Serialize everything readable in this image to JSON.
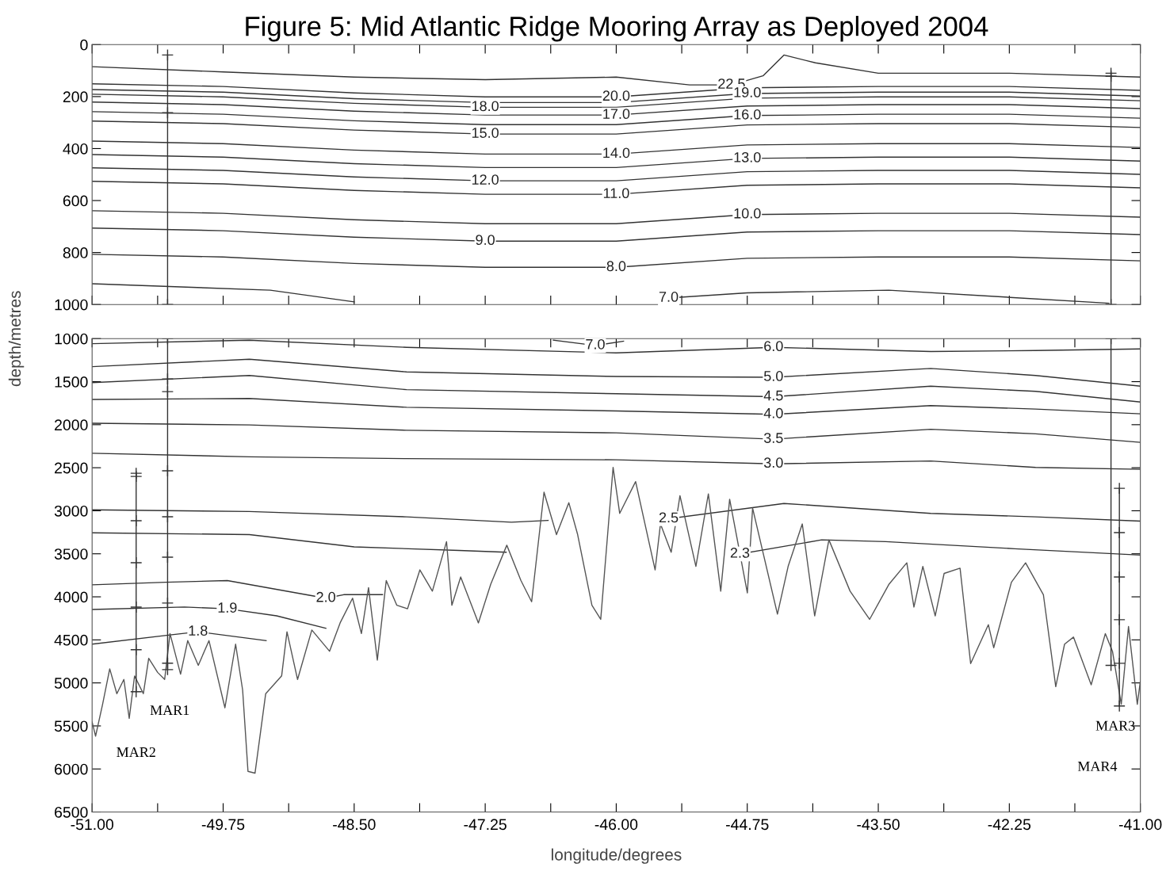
{
  "chart_data": [
    {
      "type": "line",
      "title": "Figure 5: Mid Atlantic Ridge Mooring Array as Deployed 2004",
      "xlim": [
        -51.0,
        -41.0
      ],
      "ylim": [
        1000,
        0
      ],
      "xticks": [
        {
          "value": -51.0,
          "label": null
        },
        {
          "value": -50.375,
          "label": null
        },
        {
          "value": -49.75,
          "label": null
        },
        {
          "value": -49.125,
          "label": null
        },
        {
          "value": -48.5,
          "label": null
        },
        {
          "value": -47.875,
          "label": null
        },
        {
          "value": -47.25,
          "label": null
        },
        {
          "value": -46.625,
          "label": null
        },
        {
          "value": -46.0,
          "label": null
        },
        {
          "value": -45.375,
          "label": null
        },
        {
          "value": -44.75,
          "label": null
        },
        {
          "value": -44.125,
          "label": null
        },
        {
          "value": -43.5,
          "label": null
        },
        {
          "value": -42.875,
          "label": null
        },
        {
          "value": -42.25,
          "label": null
        },
        {
          "value": -41.625,
          "label": null
        },
        {
          "value": -41.0,
          "label": null
        }
      ],
      "yticks": [
        0,
        200,
        400,
        600,
        800,
        1000
      ],
      "tick_labels": "y",
      "grid": false,
      "marker": "none",
      "line_style": "solid",
      "series": [
        {
          "name": "22.5",
          "color": "#333333",
          "x": [
            -51.0,
            -49.75,
            -48.5,
            -47.25,
            -46.0,
            -45.3,
            -44.9,
            -44.6,
            -44.4,
            -44.1,
            -43.5,
            -42.25,
            -41.0
          ],
          "values": [
            85,
            105,
            125,
            135,
            125,
            155,
            155,
            120,
            40,
            70,
            110,
            110,
            125
          ]
        },
        {
          "name": "20.0",
          "color": "#333333",
          "x": [
            -51.0,
            -49.75,
            -48.5,
            -47.25,
            -46.0,
            -44.75,
            -43.5,
            -42.25,
            -41.0
          ],
          "values": [
            151,
            161,
            186,
            201,
            201,
            166,
            161,
            161,
            176
          ]
        },
        {
          "name": "19.0",
          "color": "#333333",
          "x": [
            -51.0,
            -49.75,
            -48.5,
            -47.25,
            -46.0,
            -44.75,
            -43.5,
            -42.25,
            -41.0
          ],
          "values": [
            173,
            183,
            208,
            223,
            223,
            188,
            183,
            183,
            198
          ]
        },
        {
          "name": "18.0",
          "color": "#333333",
          "x": [
            -51.0,
            -49.75,
            -48.5,
            -47.25,
            -46.0,
            -44.75,
            -43.5,
            -42.25,
            -41.0
          ],
          "values": [
            191,
            201,
            226,
            241,
            241,
            206,
            201,
            201,
            216
          ]
        },
        {
          "name": "17.0",
          "color": "#333333",
          "x": [
            -51.0,
            -49.75,
            -48.5,
            -47.25,
            -46.0,
            -44.75,
            -43.5,
            -42.25,
            -41.0
          ],
          "values": [
            221,
            231,
            256,
            271,
            271,
            236,
            231,
            231,
            246
          ]
        },
        {
          "name": "16.0",
          "color": "#333333",
          "x": [
            -51.0,
            -49.75,
            -48.5,
            -47.25,
            -46.0,
            -44.75,
            -43.5,
            -42.25,
            -41.0
          ],
          "values": [
            258,
            268,
            293,
            308,
            308,
            273,
            268,
            268,
            283
          ]
        },
        {
          "name": "15.0",
          "color": "#333333",
          "x": [
            -51.0,
            -49.75,
            -48.5,
            -47.25,
            -46.0,
            -44.75,
            -43.5,
            -42.25,
            -41.0
          ],
          "values": [
            294,
            304,
            329,
            344,
            344,
            309,
            304,
            304,
            319
          ]
        },
        {
          "name": "14.0",
          "color": "#333333",
          "x": [
            -51.0,
            -49.75,
            -48.5,
            -47.25,
            -46.0,
            -44.75,
            -43.5,
            -42.25,
            -41.0
          ],
          "values": [
            371,
            381,
            406,
            421,
            421,
            386,
            381,
            381,
            396
          ]
        },
        {
          "name": "13.0",
          "color": "#333333",
          "x": [
            -51.0,
            -49.75,
            -48.5,
            -47.25,
            -46.0,
            -44.75,
            -43.5,
            -42.25,
            -41.0
          ],
          "values": [
            423,
            433,
            458,
            473,
            473,
            438,
            433,
            433,
            448
          ]
        },
        {
          "name": "12.0",
          "color": "#333333",
          "x": [
            -51.0,
            -49.75,
            -48.5,
            -47.25,
            -46.0,
            -44.75,
            -43.5,
            -42.25,
            -41.0
          ],
          "values": [
            474,
            484,
            509,
            524,
            524,
            489,
            484,
            484,
            499
          ]
        },
        {
          "name": "11.0",
          "color": "#333333",
          "x": [
            -51.0,
            -49.75,
            -48.5,
            -47.25,
            -46.0,
            -44.75,
            -43.5,
            -42.25,
            -41.0
          ],
          "values": [
            526,
            536,
            561,
            576,
            576,
            541,
            536,
            536,
            551
          ]
        },
        {
          "name": "10.0",
          "color": "#333333",
          "x": [
            -51.0,
            -49.75,
            -48.5,
            -47.25,
            -46.0,
            -44.75,
            -43.5,
            -42.25,
            -41.0
          ],
          "values": [
            639,
            649,
            674,
            689,
            689,
            654,
            649,
            649,
            664
          ]
        },
        {
          "name": "9.0",
          "color": "#333333",
          "x": [
            -51.0,
            -49.75,
            -48.5,
            -47.25,
            -46.0,
            -44.75,
            -43.5,
            -42.25,
            -41.0
          ],
          "values": [
            706,
            716,
            741,
            756,
            756,
            721,
            716,
            716,
            731
          ]
        },
        {
          "name": "8.0",
          "color": "#333333",
          "x": [
            -51.0,
            -49.75,
            -48.5,
            -47.25,
            -46.0,
            -44.75,
            -43.5,
            -42.25,
            -41.0
          ],
          "values": [
            807,
            817,
            842,
            857,
            857,
            822,
            817,
            817,
            832
          ]
        },
        {
          "name": "7.0",
          "color": "#333333",
          "x": [
            -51.0,
            -49.3,
            -48.5,
            -47.25,
            -46.0,
            -45.5,
            -44.75,
            -43.4,
            -41.3
          ],
          "values": [
            920,
            945,
            990,
            null,
            null,
            975,
            955,
            945,
            995
          ]
        },
        {
          "color": "#333333",
          "marker": "cross",
          "x": [
            -50.28,
            -50.28,
            -50.28
          ],
          "values": [
            40,
            262,
            1000
          ]
        },
        {
          "color": "#333333",
          "marker": "cross",
          "x": [
            -41.28,
            -41.28,
            -41.28
          ],
          "values": [
            110,
            122,
            1000
          ]
        }
      ]
    },
    {
      "type": "line",
      "xlabel": "longitude/degrees",
      "ylabel": "depth/metres",
      "xlim": [
        -51.0,
        -41.0
      ],
      "ylim": [
        6500,
        1000
      ],
      "xticks": [
        {
          "value": -51.0,
          "label": "-51.00"
        },
        {
          "value": -50.375,
          "label": null
        },
        {
          "value": -49.75,
          "label": "-49.75"
        },
        {
          "value": -49.125,
          "label": null
        },
        {
          "value": -48.5,
          "label": "-48.50"
        },
        {
          "value": -47.875,
          "label": null
        },
        {
          "value": -47.25,
          "label": "-47.25"
        },
        {
          "value": -46.625,
          "label": null
        },
        {
          "value": -46.0,
          "label": "-46.00"
        },
        {
          "value": -45.375,
          "label": null
        },
        {
          "value": -44.75,
          "label": "-44.75"
        },
        {
          "value": -44.125,
          "label": null
        },
        {
          "value": -43.5,
          "label": "-43.50"
        },
        {
          "value": -42.875,
          "label": null
        },
        {
          "value": -42.25,
          "label": "-42.25"
        },
        {
          "value": -41.625,
          "label": null
        },
        {
          "value": -41.0,
          "label": "-41.00"
        }
      ],
      "yticks": [
        1000,
        1500,
        2000,
        2500,
        3000,
        3500,
        4000,
        4500,
        5000,
        5500,
        6000,
        6500
      ],
      "grid": false,
      "marker": "none",
      "line_style": "solid",
      "annotations": [
        "MAR1",
        "MAR2",
        "MAR3",
        "MAR4"
      ],
      "series": [
        {
          "name": "7.0",
          "color": "#333333",
          "x": [
            -46.6,
            -46.2,
            -45.93
          ],
          "values": [
            1018,
            1079,
            1030
          ]
        },
        {
          "name": "6.0",
          "color": "#333333",
          "x": [
            -51.0,
            -49.5,
            -48.0,
            -46.0,
            -44.5,
            -43.0,
            -42.0,
            -41.0
          ],
          "values": [
            1059,
            1018,
            1101,
            1166,
            1101,
            1150,
            1138,
            1120
          ]
        },
        {
          "name": "5.0",
          "color": "#333333",
          "x": [
            -51.0,
            -49.5,
            -48.0,
            -46.0,
            -44.5,
            -43.0,
            -42.0,
            -41.0
          ],
          "values": [
            1326,
            1240,
            1387,
            1440,
            1449,
            1346,
            1428,
            1552
          ]
        },
        {
          "name": "4.5",
          "color": "#333333",
          "x": [
            -51.0,
            -49.5,
            -48.0,
            -46.0,
            -44.5,
            -43.0,
            -42.0,
            -41.0
          ],
          "values": [
            1511,
            1428,
            1593,
            1640,
            1675,
            1552,
            1613,
            1736
          ]
        },
        {
          "name": "4.0",
          "color": "#333333",
          "x": [
            -51.0,
            -49.5,
            -48.0,
            -46.0,
            -44.5,
            -43.0,
            -42.0,
            -41.0
          ],
          "values": [
            1707,
            1695,
            1798,
            1840,
            1880,
            1778,
            1818,
            1874
          ]
        },
        {
          "name": "3.5",
          "color": "#333333",
          "x": [
            -51.0,
            -49.5,
            -48.0,
            -46.0,
            -44.5,
            -43.0,
            -42.0,
            -41.0
          ],
          "values": [
            1983,
            2003,
            2065,
            2095,
            2168,
            2053,
            2106,
            2205
          ]
        },
        {
          "name": "3.0",
          "color": "#333333",
          "x": [
            -51.0,
            -49.5,
            -48.0,
            -46.0,
            -44.5,
            -43.0,
            -42.0,
            -41.0
          ],
          "values": [
            2332,
            2373,
            2394,
            2408,
            2455,
            2422,
            2496,
            2518
          ]
        },
        {
          "name": "2.5",
          "color": "#333333",
          "x": [
            -51.0,
            -49.5,
            -48.0,
            -47.0,
            -46.65,
            -46.0,
            -45.5,
            -44.4,
            -43.0,
            -42.0,
            -41.0
          ],
          "values": [
            2989,
            3009,
            3071,
            3133,
            3112,
            null,
            3092,
            2915,
            3030,
            3071,
            3120
          ]
        },
        {
          "name": "2.3",
          "color": "#333333",
          "x": [
            -51.0,
            -49.5,
            -48.5,
            -47.5,
            -47.05,
            -46.0,
            -44.82,
            -44.04,
            -43.43,
            -42.2,
            -41.0
          ],
          "values": [
            3256,
            3277,
            3420,
            3461,
            3482,
            null,
            3502,
            3338,
            3359,
            3441,
            3515
          ]
        },
        {
          "name": "2.0",
          "color": "#333333",
          "x": [
            -51.0,
            -50.3,
            -49.71,
            -48.77,
            -48.6,
            -48.23
          ],
          "values": [
            3860,
            3831,
            3811,
            4016,
            3975,
            3975
          ]
        },
        {
          "name": "1.9",
          "color": "#333333",
          "x": [
            -51.0,
            -50.12,
            -49.71,
            -49.24,
            -48.77
          ],
          "values": [
            4147,
            4118,
            4139,
            4221,
            4365
          ]
        },
        {
          "name": "1.8",
          "color": "#333333",
          "x": [
            -51.0,
            -50.29,
            -49.99,
            -49.34
          ],
          "values": [
            4550,
            4447,
            4406,
            4509
          ]
        },
        {
          "color": "#555555",
          "x": [
            -51.0,
            -50.967,
            -50.9,
            -50.832,
            -50.764,
            -50.697,
            -50.646,
            -50.595,
            -50.511,
            -50.46,
            -50.375,
            -50.308,
            -50.257,
            -50.156,
            -50.088,
            -49.987,
            -49.885,
            -49.733,
            -49.631,
            -49.564,
            -49.513,
            -49.446,
            -49.344,
            -49.192,
            -49.141,
            -49.04,
            -48.904,
            -48.735,
            -48.634,
            -48.515,
            -48.431,
            -48.363,
            -48.279,
            -48.194,
            -48.093,
            -47.991,
            -47.873,
            -47.754,
            -47.619,
            -47.568,
            -47.484,
            -47.315,
            -47.197,
            -47.044,
            -46.909,
            -46.807,
            -46.689,
            -46.57,
            -46.452,
            -46.368,
            -46.232,
            -46.148,
            -46.03,
            -45.967,
            -45.815,
            -45.629,
            -45.578,
            -45.476,
            -45.392,
            -45.24,
            -45.121,
            -45.003,
            -44.918,
            -44.749,
            -44.699,
            -44.462,
            -44.36,
            -44.225,
            -44.107,
            -43.971,
            -43.769,
            -43.583,
            -43.397,
            -43.228,
            -43.16,
            -43.075,
            -42.957,
            -42.872,
            -42.72,
            -42.619,
            -42.45,
            -42.399,
            -42.23,
            -42.095,
            -41.925,
            -41.807,
            -41.723,
            -41.638,
            -41.469,
            -41.334,
            -41.266,
            -41.182,
            -41.113,
            -41.029,
            -41.0
          ],
          "values": [
            5454,
            5618,
            5248,
            4837,
            5125,
            4960,
            5412,
            4919,
            5125,
            4714,
            4878,
            4960,
            4427,
            4899,
            4509,
            4796,
            4509,
            5289,
            4550,
            5084,
            6028,
            6049,
            5125,
            4919,
            4406,
            4960,
            4385,
            4632,
            4303,
            4016,
            4427,
            3893,
            4735,
            3811,
            4098,
            4139,
            3687,
            3934,
            3359,
            4098,
            3769,
            4303,
            3852,
            3400,
            3811,
            4057,
            2784,
            3277,
            2907,
            3277,
            4098,
            4262,
            2496,
            3030,
            2661,
            3687,
            3153,
            3482,
            2825,
            3646,
            2804,
            3934,
            2866,
            3954,
            2969,
            4201,
            3646,
            3153,
            4221,
            3338,
            3934,
            4262,
            3852,
            3605,
            4119,
            3646,
            4221,
            3728,
            3667,
            4776,
            4324,
            4591,
            3831,
            3605,
            3975,
            5043,
            4550,
            4468,
            5022,
            4427,
            4632,
            5248,
            4344,
            5248,
            4981
          ]
        },
        {
          "color": "#333333",
          "marker": "cross",
          "x": [
            -50.28,
            -50.28,
            -50.28,
            -50.28,
            -50.28,
            -50.28,
            -50.28,
            -50.28,
            -50.28
          ],
          "values": [
            1000,
            1469,
            1616,
            2536,
            3070,
            3539,
            4072,
            4771,
            4846
          ]
        },
        {
          "color": "#333333",
          "marker": "cross",
          "x": [
            -50.58,
            -50.58,
            -50.58,
            -50.58,
            -50.58,
            -50.58,
            -50.58
          ],
          "values": [
            2564,
            2601,
            3116,
            3604,
            4119,
            4615,
            5103
          ]
        },
        {
          "color": "#333333",
          "marker": "cross",
          "x": [
            -41.28,
            -41.28
          ],
          "values": [
            1000,
            4796
          ]
        },
        {
          "color": "#333333",
          "marker": "cross",
          "x": [
            -41.2,
            -41.2,
            -41.2,
            -41.2,
            -41.2,
            -41.2
          ],
          "values": [
            2739,
            3254,
            3769,
            4266,
            4772,
            5268
          ]
        }
      ]
    }
  ]
}
